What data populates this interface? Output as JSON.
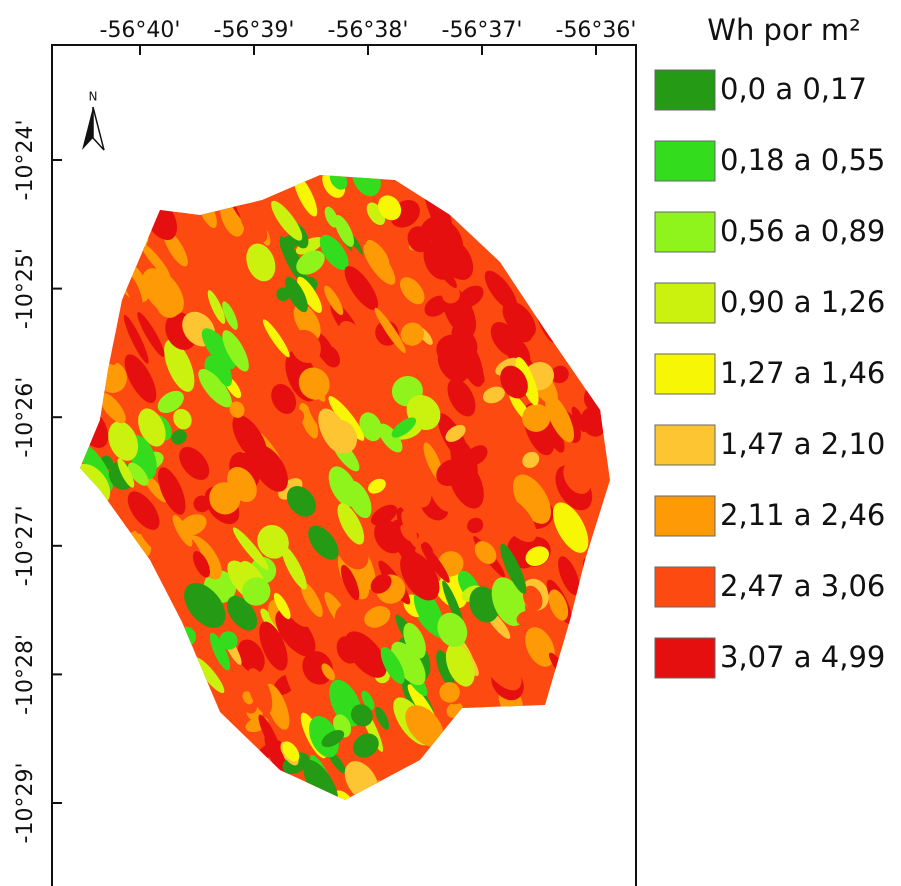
{
  "map": {
    "north_label": "N",
    "longitude_labels": [
      "-56°40'",
      "-56°39'",
      "-56°38'",
      "-56°37'",
      "-56°36'"
    ],
    "latitude_labels": [
      "-10°24'",
      "-10°25'",
      "-10°26'",
      "-10°27'",
      "-10°28'",
      "-10°29'"
    ]
  },
  "legend": {
    "title": "Wh por m²",
    "items": [
      {
        "label": "0,0 a 0,17",
        "color": "#259a14"
      },
      {
        "label": "0,18 a 0,55",
        "color": "#33dd1e"
      },
      {
        "label": "0,56 a 0,89",
        "color": "#8ef41c"
      },
      {
        "label": "0,90 a 1,26",
        "color": "#cbf20f"
      },
      {
        "label": "1,27 a 1,46",
        "color": "#f7f705"
      },
      {
        "label": "1,47 a 2,10",
        "color": "#fcc531"
      },
      {
        "label": "2,11 a 2,46",
        "color": "#fd9a05"
      },
      {
        "label": "2,47 a 3,06",
        "color": "#fd4a10"
      },
      {
        "label": "3,07 a 4,99",
        "color": "#e60f0f"
      }
    ]
  }
}
